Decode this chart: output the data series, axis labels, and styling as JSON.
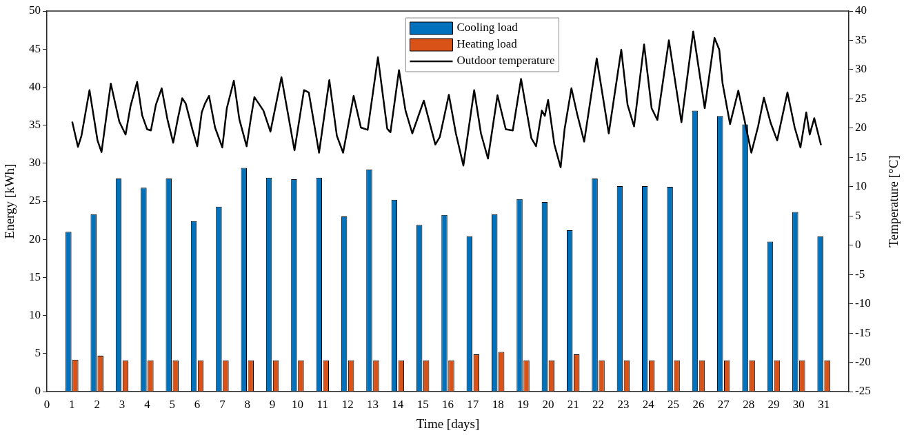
{
  "chart_data": {
    "type": "bar",
    "xlabel": "Time [days]",
    "ylabel": "Energy [kWh]",
    "y2label": "Temperature [°C]",
    "x": [
      1,
      2,
      3,
      4,
      5,
      6,
      7,
      8,
      9,
      10,
      11,
      12,
      13,
      14,
      15,
      16,
      17,
      18,
      19,
      20,
      21,
      22,
      23,
      24,
      25,
      26,
      27,
      28,
      29,
      30,
      31
    ],
    "xlim": [
      0,
      32
    ],
    "xticks": [
      0,
      1,
      2,
      3,
      4,
      5,
      6,
      7,
      8,
      9,
      10,
      11,
      12,
      13,
      14,
      15,
      16,
      17,
      18,
      19,
      20,
      21,
      22,
      23,
      24,
      25,
      26,
      27,
      28,
      29,
      30,
      31
    ],
    "ylim": [
      0,
      50
    ],
    "yticks": [
      0,
      5,
      10,
      15,
      20,
      25,
      30,
      35,
      40,
      45,
      50
    ],
    "y2lim": [
      -25,
      40
    ],
    "y2ticks": [
      -25,
      -20,
      -15,
      -10,
      -5,
      0,
      5,
      10,
      15,
      20,
      25,
      30,
      35,
      40
    ],
    "legend": "top",
    "grid": false,
    "series": [
      {
        "name": "Cooling load",
        "color": "#0072bd",
        "values": [
          21.0,
          23.3,
          28.0,
          26.8,
          28.0,
          22.4,
          24.3,
          29.4,
          28.1,
          27.9,
          28.1,
          23.0,
          29.2,
          25.2,
          21.9,
          23.2,
          20.4,
          23.3,
          25.3,
          24.9,
          21.2,
          28.0,
          27.0,
          27.0,
          26.9,
          36.9,
          36.2,
          35.1,
          19.7,
          23.6,
          20.4
        ]
      },
      {
        "name": "Heating load",
        "color": "#d95319",
        "values": [
          4.2,
          4.7,
          4.1,
          4.1,
          4.1,
          4.1,
          4.1,
          4.1,
          4.1,
          4.1,
          4.1,
          4.1,
          4.1,
          4.1,
          4.1,
          4.1,
          4.9,
          5.2,
          4.1,
          4.1,
          4.9,
          4.1,
          4.1,
          4.1,
          4.1,
          4.1,
          4.1,
          4.1,
          4.1,
          4.1,
          4.1
        ]
      },
      {
        "name": "Outdoor temperature",
        "type": "line",
        "axis": "y2",
        "color": "#000000",
        "x": [
          1.01,
          1.24,
          1.38,
          1.7,
          2.02,
          2.18,
          2.55,
          2.89,
          3.14,
          3.34,
          3.6,
          3.8,
          4.0,
          4.15,
          4.35,
          4.58,
          4.81,
          5.04,
          5.22,
          5.4,
          5.54,
          5.81,
          6.0,
          6.18,
          6.31,
          6.47,
          6.71,
          7.0,
          7.18,
          7.46,
          7.68,
          7.97,
          8.14,
          8.28,
          8.64,
          8.92,
          9.36,
          9.88,
          10.26,
          10.45,
          10.86,
          11.27,
          11.57,
          11.82,
          12.24,
          12.53,
          12.8,
          13.21,
          13.58,
          13.71,
          14.05,
          14.31,
          14.58,
          15.04,
          15.5,
          15.68,
          16.04,
          16.32,
          16.62,
          17.05,
          17.32,
          17.6,
          17.98,
          18.31,
          18.59,
          18.92,
          19.33,
          19.52,
          19.75,
          19.87,
          20.0,
          20.25,
          20.5,
          20.66,
          20.93,
          21.16,
          21.44,
          21.94,
          22.42,
          22.92,
          23.17,
          23.43,
          23.83,
          24.13,
          24.36,
          24.82,
          25.32,
          25.79,
          26.25,
          26.64,
          26.83,
          26.96,
          27.26,
          27.59,
          28.11,
          28.38,
          28.61,
          28.88,
          29.14,
          29.55,
          29.84,
          30.07,
          30.3,
          30.44,
          30.62,
          30.89
        ],
        "values": [
          21.1,
          16.8,
          18.7,
          26.5,
          17.9,
          15.9,
          27.6,
          21.1,
          18.9,
          23.8,
          27.9,
          22.2,
          19.8,
          19.6,
          24.0,
          26.8,
          21.5,
          17.5,
          21.5,
          25.1,
          24.2,
          19.7,
          16.9,
          22.7,
          24.2,
          25.5,
          20.1,
          16.7,
          23.4,
          28.1,
          21.5,
          16.9,
          21.7,
          25.3,
          23.0,
          19.4,
          28.7,
          16.2,
          26.5,
          26.1,
          15.8,
          28.2,
          18.7,
          15.8,
          25.5,
          20.1,
          19.7,
          32.1,
          19.9,
          19.3,
          29.9,
          23.0,
          19.1,
          24.7,
          17.2,
          18.5,
          25.7,
          19.1,
          13.6,
          26.5,
          19.1,
          14.8,
          25.6,
          19.8,
          19.6,
          28.4,
          18.3,
          16.9,
          23.0,
          22.1,
          24.8,
          17.2,
          13.3,
          19.9,
          26.8,
          22.4,
          17.7,
          31.9,
          19.1,
          33.4,
          24.0,
          20.3,
          34.3,
          23.4,
          21.4,
          35.0,
          21.0,
          36.5,
          23.4,
          35.4,
          33.4,
          27.7,
          20.7,
          26.4,
          15.8,
          20.3,
          25.2,
          20.9,
          17.9,
          26.1,
          20.1,
          16.7,
          22.7,
          18.9,
          21.7,
          17.1
        ]
      }
    ]
  }
}
